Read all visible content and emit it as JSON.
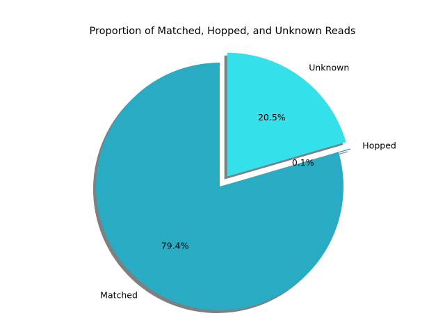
{
  "chart_data": {
    "type": "pie",
    "title": "Proportion of Matched, Hopped, and Unknown Reads",
    "start_angle_deg": 90,
    "counterclock": true,
    "shadow": true,
    "slices": [
      {
        "label": "Matched",
        "percent_label": "79.4%",
        "value": 79.4,
        "color": "#2aabc4",
        "exploded": false
      },
      {
        "label": "Hopped",
        "percent_label": "0.1%",
        "value": 0.1,
        "color": "#1e8fa8",
        "exploded": true
      },
      {
        "label": "Unknown",
        "percent_label": "20.5%",
        "value": 20.5,
        "color": "#34e0ea",
        "exploded": true
      }
    ]
  }
}
